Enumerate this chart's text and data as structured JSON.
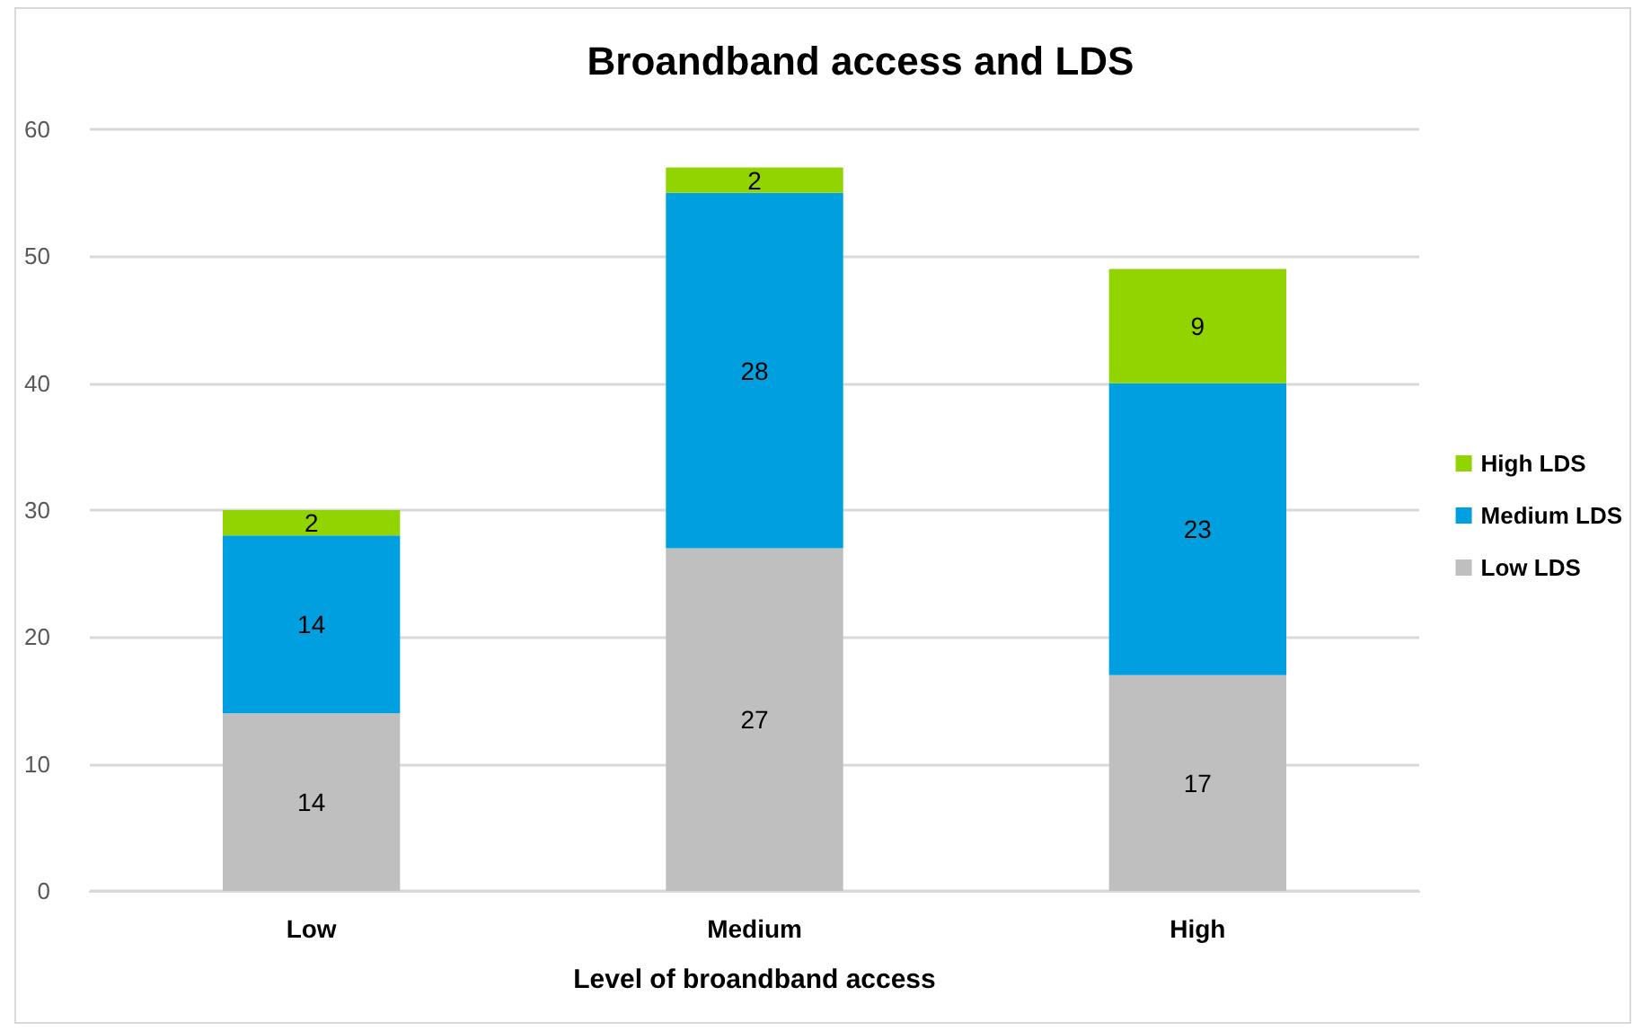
{
  "chart_data": {
    "type": "bar",
    "title": "Broandband access and LDS",
    "xlabel": "Level of broandband access",
    "categories": [
      "Low",
      "Medium",
      "High"
    ],
    "series": [
      {
        "name": "Low LDS",
        "color": "#bfbfbf",
        "values": [
          14,
          27,
          17
        ]
      },
      {
        "name": "Medium LDS",
        "color": "#009fdf",
        "values": [
          14,
          28,
          23
        ]
      },
      {
        "name": "High LDS",
        "color": "#92d400",
        "values": [
          2,
          2,
          9
        ]
      }
    ],
    "stacked": true,
    "data_labels": true,
    "ylim": [
      0,
      60
    ],
    "yticks": [
      0,
      10,
      20,
      30,
      40,
      50,
      60
    ],
    "grid": "y",
    "legend": "right"
  }
}
